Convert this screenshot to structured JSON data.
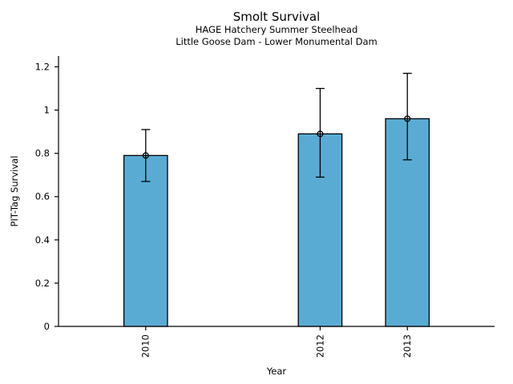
{
  "chart_data": {
    "type": "bar",
    "title": "Smolt Survival",
    "subtitle": [
      "HAGE Hatchery Summer Steelhead",
      "Little Goose Dam - Lower Monumental Dam"
    ],
    "xlabel": "Year",
    "ylabel": "PIT-Tag Survival",
    "categories": [
      "2010",
      "2012",
      "2013"
    ],
    "x": [
      2010,
      2012,
      2013
    ],
    "values": [
      0.79,
      0.89,
      0.96
    ],
    "error_low": [
      0.67,
      0.69,
      0.77
    ],
    "error_high": [
      0.91,
      1.1,
      1.17
    ],
    "bar_width_years": 0.5,
    "xlim": [
      2009,
      2014
    ],
    "ylim": [
      0,
      1.25
    ],
    "yticks": [
      0,
      0.2,
      0.4,
      0.6,
      0.8,
      1,
      1.2
    ],
    "ytick_labels": [
      "0",
      "0.2",
      "0.4",
      "0.6",
      "0.8",
      "1",
      "1.2"
    ],
    "bar_color": "#5AABD4",
    "bar_edge_color": "#000000",
    "error_color": "#000000",
    "marker": "open-circle",
    "grid": false,
    "legend": null,
    "spines": [
      "left",
      "bottom"
    ]
  }
}
